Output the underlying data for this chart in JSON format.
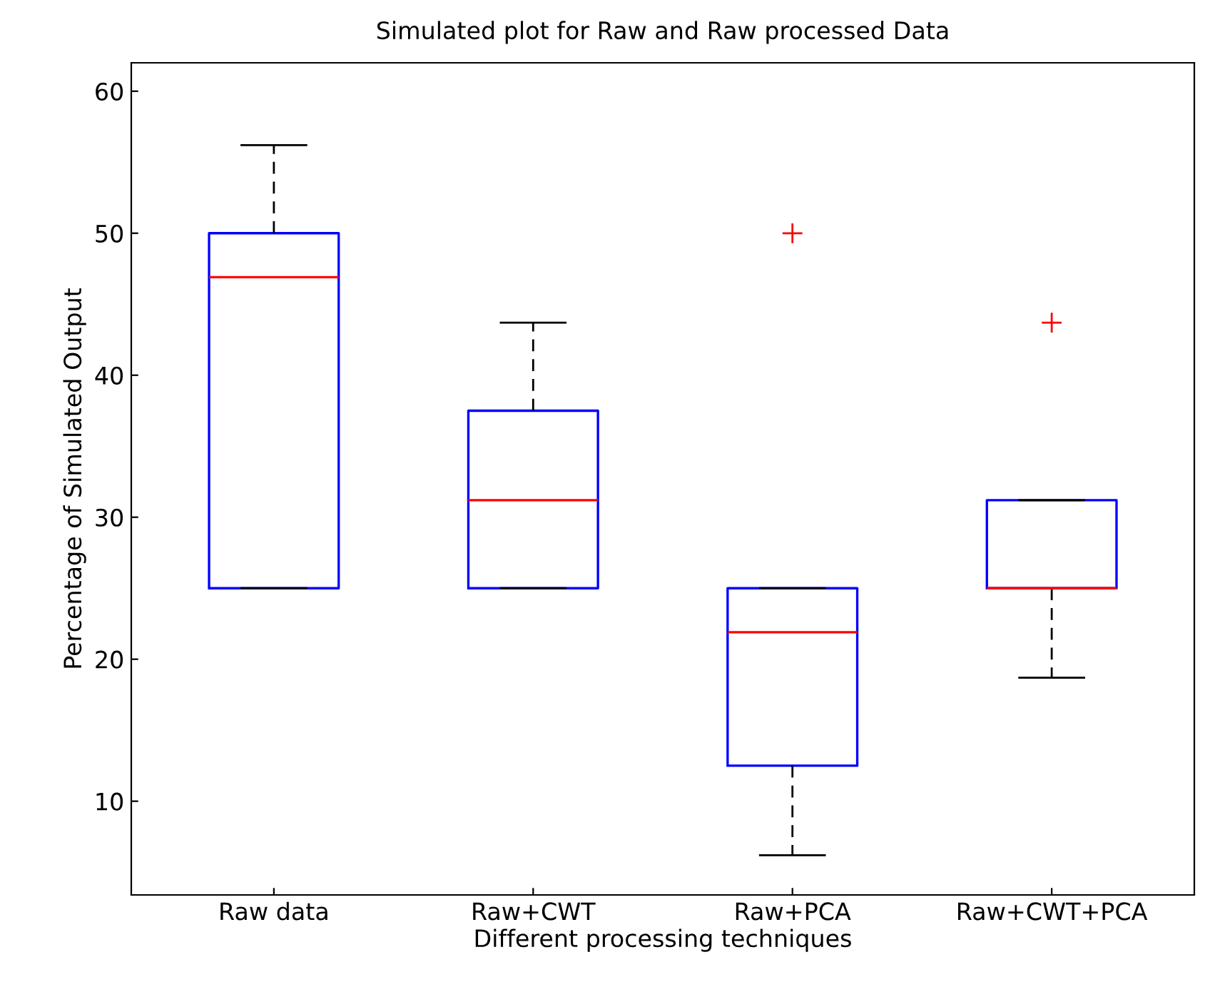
{
  "chart_data": {
    "type": "box",
    "title": "Simulated plot for Raw and Raw processed Data",
    "xlabel": "Different processing techniques",
    "ylabel": "Percentage of Simulated Output",
    "categories": [
      "Raw data",
      "Raw+CWT",
      "Raw+PCA",
      "Raw+CWT+PCA"
    ],
    "series": [
      {
        "color": "#0000ff",
        "boxes": [
          {
            "low": 25,
            "q1": 25,
            "median": 46.9,
            "q3": 50,
            "high": 56.2
          },
          {
            "low": 25,
            "q1": 25,
            "median": 31.2,
            "q3": 37.5,
            "high": 43.7
          },
          {
            "low": 6.2,
            "q1": 12.5,
            "median": 21.9,
            "q3": 25,
            "high": 25,
            "outliers": [
              50
            ]
          },
          {
            "low": 18.7,
            "q1": 25,
            "median": 25,
            "q3": 31.2,
            "high": 31.2,
            "outliers": [
              43.7
            ]
          }
        ]
      }
    ],
    "ylim": [
      3.4,
      62
    ],
    "yticks": [
      10,
      20,
      30,
      40,
      50,
      60
    ],
    "grid": false
  }
}
